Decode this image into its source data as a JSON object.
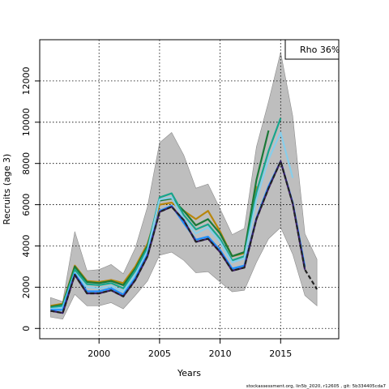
{
  "chart_data": {
    "type": "line",
    "xlabel": "Years",
    "ylabel": "Recruits (age 3)",
    "xlim": [
      1995.1,
      2019.8
    ],
    "ylim": [
      -500,
      14000
    ],
    "xticks": [
      2000,
      2005,
      2010,
      2015
    ],
    "yticks": [
      0,
      2000,
      4000,
      6000,
      8000,
      10000,
      12000
    ],
    "grid": true,
    "legend": {
      "placement": "top-right",
      "text": "Rho 36%"
    },
    "footer": "stockassessment.org, lin5b_2020, r12605 , git: 5b334405cda7",
    "band": {
      "color": "#bebebe",
      "x": [
        1996,
        1997,
        1998,
        1999,
        2000,
        2001,
        2002,
        2003,
        2004,
        2005,
        2006,
        2007,
        2008,
        2009,
        2010,
        2011,
        2012,
        2013,
        2014,
        2015,
        2016,
        2017,
        2018
      ],
      "upper": [
        1500,
        1300,
        4700,
        2800,
        2850,
        3100,
        2650,
        3900,
        5900,
        9000,
        9500,
        8400,
        6800,
        7000,
        5800,
        4550,
        4850,
        8800,
        11000,
        13400,
        10300,
        4600,
        3350
      ],
      "lower": [
        550,
        450,
        1650,
        1100,
        1100,
        1250,
        950,
        1600,
        2300,
        3550,
        3700,
        3300,
        2700,
        2750,
        2250,
        1780,
        1850,
        3200,
        4350,
        4900,
        3600,
        1600,
        1100
      ]
    },
    "series": [
      {
        "color": "#b8860b",
        "x": [
          1996,
          1997,
          1998,
          1999,
          2000,
          2001,
          2002,
          2003,
          2004,
          2005,
          2006,
          2007,
          2008,
          2009,
          2010,
          2011,
          2012,
          2013
        ],
        "values": [
          1100,
          1200,
          3050,
          2300,
          2250,
          2350,
          2200,
          3000,
          4100,
          6000,
          6100,
          5700,
          5300,
          5700,
          4700,
          3500,
          3650,
          6900
        ]
      },
      {
        "color": "#1b7837",
        "x": [
          1996,
          1997,
          1998,
          1999,
          2000,
          2001,
          2002,
          2003,
          2004,
          2005,
          2006,
          2007,
          2008,
          2009,
          2010,
          2011,
          2012,
          2013,
          2014
        ],
        "values": [
          1050,
          1150,
          3000,
          2250,
          2200,
          2300,
          2100,
          2900,
          4000,
          6200,
          6300,
          5700,
          5000,
          5300,
          4600,
          3500,
          3700,
          7200,
          9600
        ]
      },
      {
        "color": "#17a58c",
        "x": [
          1996,
          1997,
          1998,
          1999,
          2000,
          2001,
          2002,
          2003,
          2004,
          2005,
          2006,
          2007,
          2008,
          2009,
          2010,
          2011,
          2012,
          2013,
          2014,
          2015
        ],
        "values": [
          1000,
          1100,
          2850,
          2150,
          2100,
          2200,
          1950,
          2800,
          3900,
          6350,
          6550,
          5500,
          4800,
          5050,
          4350,
          3300,
          3500,
          6600,
          8600,
          10200
        ]
      },
      {
        "color": "#87ceeb",
        "x": [
          1996,
          1997,
          1998,
          1999,
          2000,
          2001,
          2002,
          2003,
          2004,
          2005,
          2006,
          2007,
          2008,
          2009,
          2010,
          2011,
          2012,
          2013,
          2014,
          2015,
          2016
        ],
        "values": [
          950,
          1000,
          2700,
          2000,
          1950,
          2050,
          1800,
          2600,
          3750,
          6250,
          6350,
          5300,
          4600,
          4900,
          4200,
          3200,
          3400,
          6250,
          8200,
          9500,
          7300
        ]
      },
      {
        "color": "#1e90ff",
        "x": [
          1996,
          1997,
          1998,
          1999,
          2000,
          2001,
          2002,
          2003,
          2004,
          2005,
          2006,
          2007,
          2008,
          2009,
          2010,
          2011,
          2012,
          2013,
          2014,
          2015,
          2016,
          2017
        ],
        "values": [
          900,
          900,
          2650,
          1800,
          1800,
          1950,
          1650,
          2450,
          3600,
          5700,
          5950,
          5100,
          4300,
          4450,
          3800,
          2900,
          3050,
          5350,
          6900,
          8100,
          6100,
          3000
        ]
      },
      {
        "color": "#3b1f6b",
        "x": [
          1996,
          1997,
          1998,
          1999,
          2000,
          2001,
          2002,
          2003,
          2004,
          2005,
          2006,
          2007,
          2008,
          2009,
          2010,
          2011,
          2012,
          2013,
          2014,
          2015,
          2016,
          2017
        ],
        "values": [
          850,
          750,
          2600,
          1700,
          1700,
          1850,
          1550,
          2350,
          3500,
          5650,
          5900,
          5250,
          4200,
          4350,
          3700,
          2800,
          2950,
          5300,
          6800,
          8100,
          6050,
          2850
        ]
      },
      {
        "color": "#222222",
        "dashed": true,
        "x": [
          1996,
          1997,
          1998,
          1999,
          2000,
          2001,
          2002,
          2003,
          2004,
          2005,
          2006,
          2007,
          2008,
          2009,
          2010,
          2011,
          2012,
          2013,
          2014,
          2015,
          2016,
          2017,
          2018
        ],
        "values": [
          850,
          750,
          2600,
          1700,
          1700,
          1850,
          1550,
          2350,
          3500,
          5650,
          5900,
          5250,
          4200,
          4350,
          3700,
          2800,
          2950,
          5300,
          6800,
          8100,
          6050,
          2850,
          1900
        ]
      }
    ]
  }
}
